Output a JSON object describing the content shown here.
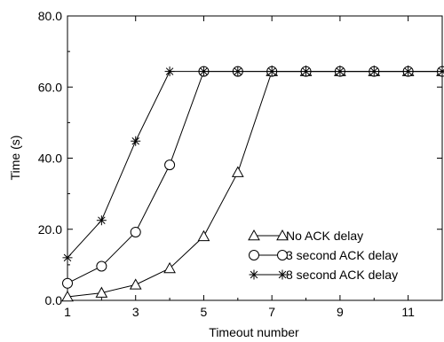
{
  "chart_data": {
    "type": "line",
    "xlabel": "Timeout number",
    "ylabel": "Time (s)",
    "xlim": [
      1,
      12
    ],
    "ylim": [
      0,
      80
    ],
    "x_ticks": [
      1,
      3,
      5,
      7,
      9,
      11
    ],
    "x_tick_labels": [
      "1",
      "3",
      "5",
      "7",
      "9",
      "11"
    ],
    "y_ticks": [
      0,
      20,
      40,
      60,
      80
    ],
    "y_tick_labels": [
      "0.0",
      "20.0",
      "40.0",
      "60.0",
      "80.0"
    ],
    "grid": false,
    "legend_position": "lower-right",
    "series": [
      {
        "name": "No ACK delay",
        "marker": "triangle",
        "x": [
          1,
          2,
          3,
          4,
          5,
          6,
          7,
          8,
          9,
          10,
          11,
          12
        ],
        "values": [
          1,
          2.1,
          4.4,
          9,
          18,
          36,
          64.4,
          64.4,
          64.4,
          64.4,
          64.4,
          64.4
        ]
      },
      {
        "name": "3 second ACK delay",
        "marker": "circle",
        "x": [
          1,
          2,
          3,
          4,
          5,
          6,
          7,
          8,
          9,
          10,
          11,
          12
        ],
        "values": [
          4.8,
          9.6,
          19.2,
          38.1,
          64.4,
          64.4,
          64.4,
          64.4,
          64.4,
          64.4,
          64.4,
          64.4
        ]
      },
      {
        "name": "8 second ACK delay",
        "marker": "asterisk",
        "x": [
          1,
          2,
          3,
          4,
          5,
          6,
          7,
          8,
          9,
          10,
          11,
          12
        ],
        "values": [
          12,
          22.5,
          44.8,
          64.4,
          64.4,
          64.4,
          64.4,
          64.4,
          64.4,
          64.4,
          64.4,
          64.4
        ]
      }
    ]
  }
}
